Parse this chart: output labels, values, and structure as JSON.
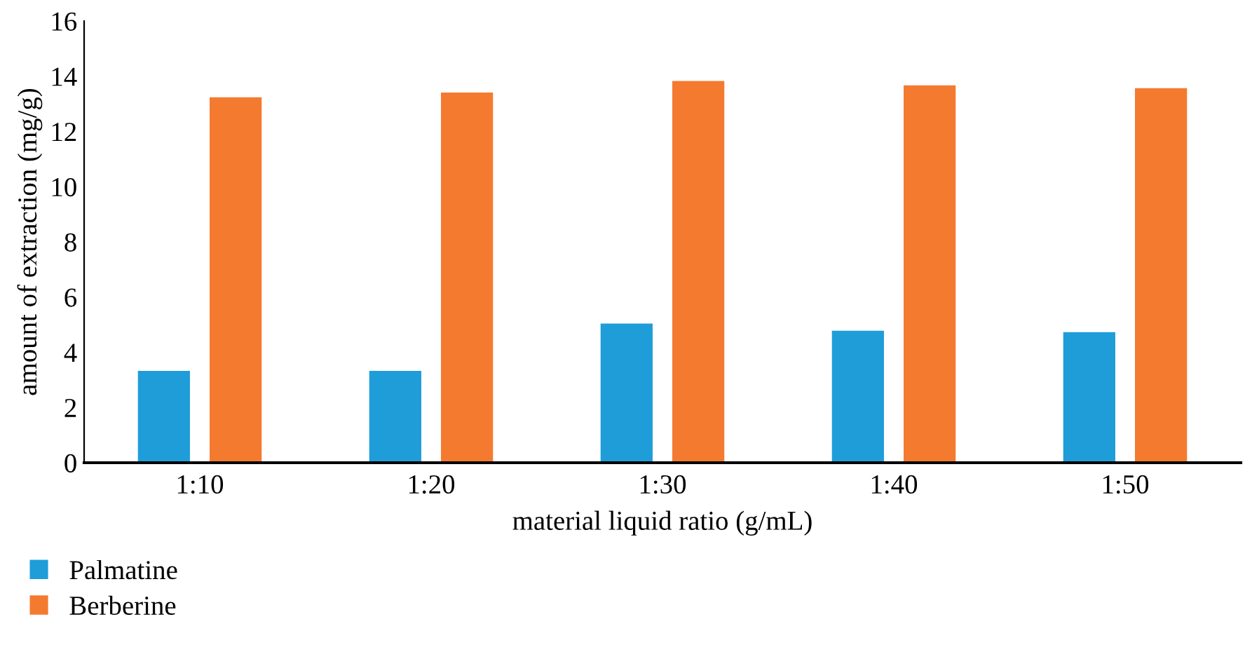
{
  "chart_data": {
    "type": "bar",
    "xlabel": "material liquid ratio (g/mL)",
    "ylabel": "amount of extraction (mg/g)",
    "categories": [
      "1:10",
      "1:20",
      "1:30",
      "1:40",
      "1:50"
    ],
    "series": [
      {
        "name": "Palmatine",
        "color": "#1f9dd9",
        "values": [
          3.33,
          3.33,
          5.04,
          4.78,
          4.73
        ]
      },
      {
        "name": "Berberine",
        "color": "#f47a30",
        "values": [
          13.24,
          13.41,
          13.83,
          13.67,
          13.57
        ]
      }
    ],
    "ylim": [
      0,
      16
    ],
    "yticks": [
      0,
      2,
      4,
      6,
      8,
      10,
      12,
      14,
      16
    ],
    "grid": false,
    "legend": "bottom left"
  }
}
